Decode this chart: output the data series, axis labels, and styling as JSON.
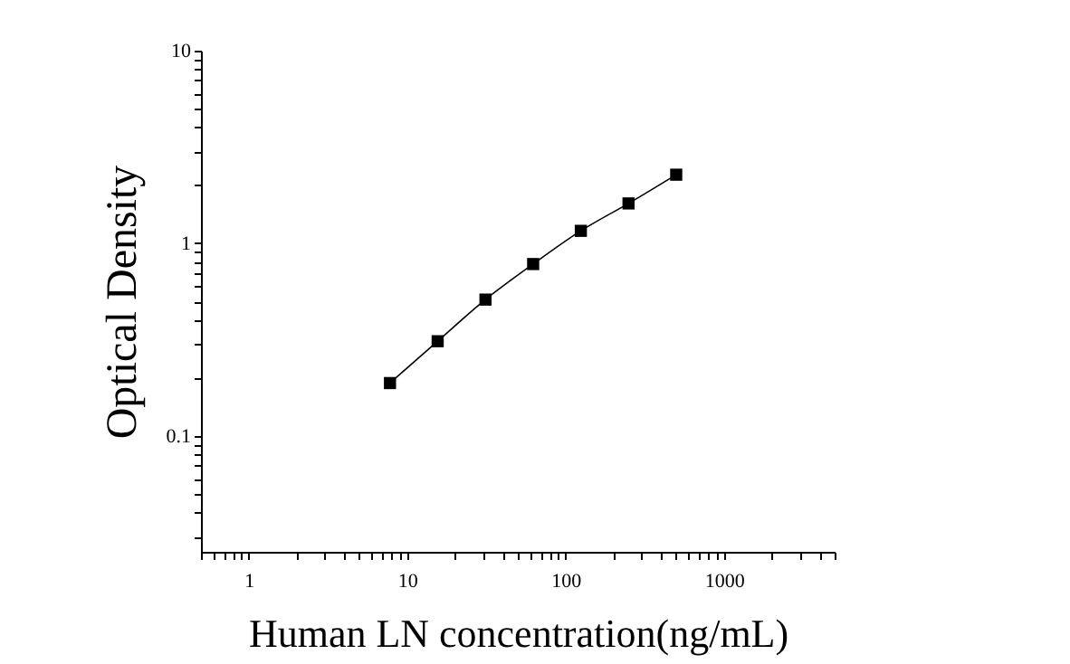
{
  "chart_data": {
    "type": "line",
    "xlabel": "Human LN concentration(ng/mL)",
    "ylabel": "Optical Density",
    "log": "xy",
    "marker": "square",
    "grid": false,
    "x": [
      7.8,
      15.6,
      31.25,
      62.5,
      125,
      250,
      500
    ],
    "series": [
      {
        "color": "#000000",
        "values": [
          0.188,
          0.31,
          0.51,
          0.78,
          1.16,
          1.61,
          2.27
        ]
      }
    ],
    "xlim": [
      0.5,
      5000
    ],
    "ylim": [
      0.025,
      10
    ],
    "xticks": [
      {
        "value": 0.5,
        "label": null
      },
      {
        "value": 0.6,
        "label": null
      },
      {
        "value": 0.7,
        "label": null
      },
      {
        "value": 0.8,
        "label": null
      },
      {
        "value": 0.9,
        "label": null
      },
      1,
      {
        "value": 2,
        "label": null
      },
      {
        "value": 3,
        "label": null
      },
      {
        "value": 4,
        "label": null
      },
      {
        "value": 5,
        "label": null
      },
      {
        "value": 6,
        "label": null
      },
      {
        "value": 7,
        "label": null
      },
      {
        "value": 8,
        "label": null
      },
      {
        "value": 9,
        "label": null
      },
      10,
      {
        "value": 20,
        "label": null
      },
      {
        "value": 30,
        "label": null
      },
      {
        "value": 40,
        "label": null
      },
      {
        "value": 50,
        "label": null
      },
      {
        "value": 60,
        "label": null
      },
      {
        "value": 70,
        "label": null
      },
      {
        "value": 80,
        "label": null
      },
      {
        "value": 90,
        "label": null
      },
      100,
      {
        "value": 200,
        "label": null
      },
      {
        "value": 300,
        "label": null
      },
      {
        "value": 400,
        "label": null
      },
      {
        "value": 500,
        "label": null
      },
      {
        "value": 600,
        "label": null
      },
      {
        "value": 700,
        "label": null
      },
      {
        "value": 800,
        "label": null
      },
      {
        "value": 900,
        "label": null
      },
      1000,
      {
        "value": 2000,
        "label": null
      },
      {
        "value": 3000,
        "label": null
      },
      {
        "value": 4000,
        "label": null
      },
      {
        "value": 5000,
        "label": null
      }
    ],
    "yticks": [
      {
        "value": 0.03,
        "label": null
      },
      {
        "value": 0.04,
        "label": null
      },
      {
        "value": 0.05,
        "label": null
      },
      {
        "value": 0.06,
        "label": null
      },
      {
        "value": 0.07,
        "label": null
      },
      {
        "value": 0.08,
        "label": null
      },
      {
        "value": 0.09,
        "label": null
      },
      0.1,
      {
        "value": 0.2,
        "label": null
      },
      {
        "value": 0.3,
        "label": null
      },
      {
        "value": 0.4,
        "label": null
      },
      {
        "value": 0.5,
        "label": null
      },
      {
        "value": 0.6,
        "label": null
      },
      {
        "value": 0.7,
        "label": null
      },
      {
        "value": 0.8,
        "label": null
      },
      {
        "value": 0.9,
        "label": null
      },
      1,
      {
        "value": 2,
        "label": null
      },
      {
        "value": 3,
        "label": null
      },
      {
        "value": 4,
        "label": null
      },
      {
        "value": 5,
        "label": null
      },
      {
        "value": 6,
        "label": null
      },
      {
        "value": 7,
        "label": null
      },
      {
        "value": 8,
        "label": null
      },
      {
        "value": 9,
        "label": null
      },
      10
    ]
  }
}
